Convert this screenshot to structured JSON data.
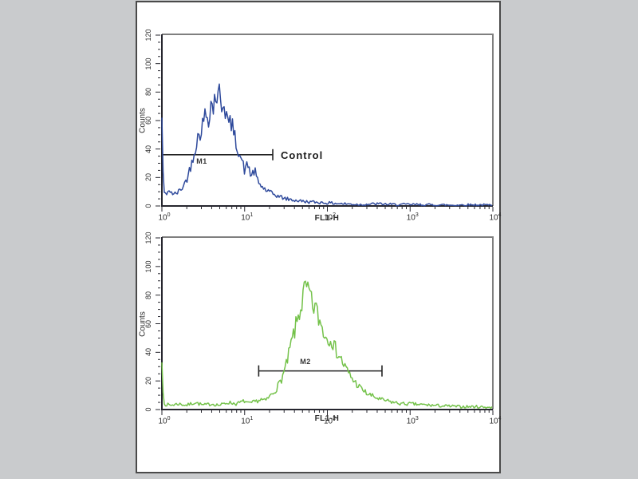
{
  "figure": {
    "description": "Flow cytometry overlay figure with two stacked single-parameter histograms",
    "colors": {
      "background": "#c9cbcd",
      "panel": "#ffffff",
      "panel_border": "#4a4a4a",
      "frame": "#7f7f7f",
      "axis": "#26262e",
      "marker": "#222222",
      "text": "#2b2b2b"
    }
  },
  "chart_data": [
    {
      "type": "area",
      "title": "",
      "xlabel": "FL1-H",
      "ylabel": "Counts",
      "x_scale": "log",
      "xlim_log": [
        0,
        4
      ],
      "ylim": [
        0,
        120
      ],
      "x_ticks": [
        "10^0",
        "10^1",
        "10^2",
        "10^3",
        "10^4"
      ],
      "x_tick_exponents": [
        0,
        1,
        2,
        3,
        4
      ],
      "y_ticks": [
        0,
        20,
        40,
        60,
        80,
        100,
        120
      ],
      "grid": false,
      "legend": "none",
      "marker": {
        "label": "M1",
        "annotation": "Control",
        "y_counts": 36,
        "from_logx": 0.0,
        "to_logx": 1.34,
        "left_tick": false,
        "right_tick": true
      },
      "series": [
        {
          "name": "control-histogram",
          "color": "#2f4a9c",
          "peak_x": 4.5,
          "peak_counts": 80,
          "points_logx_counts": [
            [
              0,
              62
            ],
            [
              0.02,
              10
            ],
            [
              0.06,
              8
            ],
            [
              0.1,
              11
            ],
            [
              0.14,
              8
            ],
            [
              0.18,
              9
            ],
            [
              0.22,
              11
            ],
            [
              0.26,
              14
            ],
            [
              0.3,
              19
            ],
            [
              0.34,
              26
            ],
            [
              0.38,
              36
            ],
            [
              0.42,
              45
            ],
            [
              0.46,
              52
            ],
            [
              0.5,
              58
            ],
            [
              0.53,
              66
            ],
            [
              0.56,
              61
            ],
            [
              0.59,
              73
            ],
            [
              0.62,
              68
            ],
            [
              0.645,
              80
            ],
            [
              0.67,
              75
            ],
            [
              0.695,
              79
            ],
            [
              0.72,
              71
            ],
            [
              0.75,
              74
            ],
            [
              0.78,
              64
            ],
            [
              0.81,
              56
            ],
            [
              0.84,
              59
            ],
            [
              0.87,
              50
            ],
            [
              0.9,
              44
            ],
            [
              0.93,
              39
            ],
            [
              0.96,
              33
            ],
            [
              1.0,
              25
            ],
            [
              1.04,
              29
            ],
            [
              1.08,
              21
            ],
            [
              1.12,
              25
            ],
            [
              1.16,
              17
            ],
            [
              1.2,
              14
            ],
            [
              1.26,
              11
            ],
            [
              1.32,
              9
            ],
            [
              1.4,
              7
            ],
            [
              1.5,
              5
            ],
            [
              1.6,
              4
            ],
            [
              1.75,
              3
            ],
            [
              1.9,
              2.5
            ],
            [
              2.05,
              2
            ],
            [
              2.2,
              1.5
            ],
            [
              2.4,
              1
            ],
            [
              2.6,
              1.5
            ],
            [
              2.8,
              1
            ],
            [
              3.0,
              1
            ],
            [
              3.2,
              0.8
            ],
            [
              3.5,
              0.6
            ],
            [
              3.8,
              0.8
            ],
            [
              4.0,
              0.5
            ]
          ]
        }
      ]
    },
    {
      "type": "area",
      "title": "",
      "xlabel": "FL1-H",
      "ylabel": "Counts",
      "x_scale": "log",
      "xlim_log": [
        0,
        4
      ],
      "ylim": [
        0,
        120
      ],
      "x_ticks": [
        "10^0",
        "10^1",
        "10^2",
        "10^3",
        "10^4"
      ],
      "x_tick_exponents": [
        0,
        1,
        2,
        3,
        4
      ],
      "y_ticks": [
        0,
        20,
        40,
        60,
        80,
        100,
        120
      ],
      "grid": false,
      "legend": "none",
      "marker": {
        "label": "M2",
        "annotation": "",
        "y_counts": 27,
        "from_logx": 1.17,
        "to_logx": 2.66,
        "left_tick": true,
        "right_tick": true
      },
      "series": [
        {
          "name": "sample-histogram",
          "color": "#74c24a",
          "peak_x": 55,
          "peak_counts": 86,
          "points_logx_counts": [
            [
              0,
              33
            ],
            [
              0.02,
              4
            ],
            [
              0.1,
              3
            ],
            [
              0.2,
              4
            ],
            [
              0.3,
              3
            ],
            [
              0.4,
              5
            ],
            [
              0.5,
              3
            ],
            [
              0.6,
              4
            ],
            [
              0.7,
              3
            ],
            [
              0.8,
              5
            ],
            [
              0.9,
              4
            ],
            [
              1.0,
              6
            ],
            [
              1.05,
              4
            ],
            [
              1.1,
              5
            ],
            [
              1.15,
              6
            ],
            [
              1.2,
              7
            ],
            [
              1.25,
              6
            ],
            [
              1.3,
              9
            ],
            [
              1.35,
              12
            ],
            [
              1.4,
              16
            ],
            [
              1.45,
              22
            ],
            [
              1.5,
              30
            ],
            [
              1.54,
              40
            ],
            [
              1.58,
              50
            ],
            [
              1.62,
              58
            ],
            [
              1.66,
              68
            ],
            [
              1.7,
              76
            ],
            [
              1.72,
              82
            ],
            [
              1.74,
              86
            ],
            [
              1.76,
              79
            ],
            [
              1.78,
              83
            ],
            [
              1.8,
              76
            ],
            [
              1.82,
              71
            ],
            [
              1.85,
              73
            ],
            [
              1.88,
              66
            ],
            [
              1.92,
              60
            ],
            [
              1.96,
              54
            ],
            [
              2.0,
              49
            ],
            [
              2.04,
              52
            ],
            [
              2.08,
              44
            ],
            [
              2.12,
              40
            ],
            [
              2.16,
              36
            ],
            [
              2.2,
              31
            ],
            [
              2.26,
              25
            ],
            [
              2.32,
              20
            ],
            [
              2.4,
              15
            ],
            [
              2.48,
              11
            ],
            [
              2.56,
              9
            ],
            [
              2.64,
              7
            ],
            [
              2.72,
              6
            ],
            [
              2.8,
              5
            ],
            [
              2.9,
              4
            ],
            [
              3.0,
              4
            ],
            [
              3.1,
              3.5
            ],
            [
              3.25,
              3
            ],
            [
              3.4,
              2.5
            ],
            [
              3.6,
              2
            ],
            [
              3.8,
              2
            ],
            [
              4.0,
              1.5
            ]
          ]
        }
      ]
    }
  ]
}
